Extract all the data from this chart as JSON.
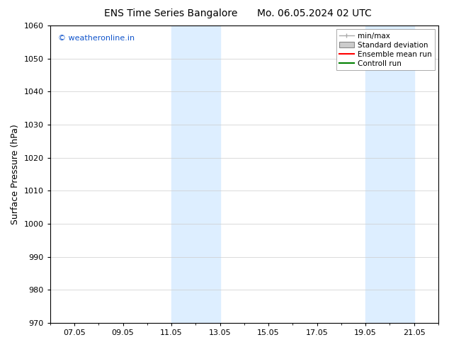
{
  "title_left": "ENS Time Series Bangalore",
  "title_right": "Mo. 06.05.2024 02 UTC",
  "ylabel": "Surface Pressure (hPa)",
  "ylim": [
    970,
    1060
  ],
  "yticks": [
    970,
    980,
    990,
    1000,
    1010,
    1020,
    1030,
    1040,
    1050,
    1060
  ],
  "xtick_labels": [
    "07.05",
    "09.05",
    "11.05",
    "13.05",
    "15.05",
    "17.05",
    "19.05",
    "21.05"
  ],
  "xtick_positions": [
    1,
    3,
    5,
    7,
    9,
    11,
    13,
    15
  ],
  "xlim": [
    0,
    16
  ],
  "shaded_regions": [
    {
      "x_start": 5.0,
      "x_end": 7.0
    },
    {
      "x_start": 13.0,
      "x_end": 15.0
    }
  ],
  "shaded_color": "#ddeeff",
  "watermark_text": "© weatheronline.in",
  "watermark_color": "#1155cc",
  "legend_items": [
    {
      "label": "min/max",
      "type": "minmax",
      "color": "#aaaaaa"
    },
    {
      "label": "Standard deviation",
      "type": "patch",
      "color": "#cccccc"
    },
    {
      "label": "Ensemble mean run",
      "type": "line",
      "color": "red"
    },
    {
      "label": "Controll run",
      "type": "line",
      "color": "green"
    }
  ],
  "background_color": "#ffffff",
  "title_fontsize": 10,
  "ylabel_fontsize": 9,
  "tick_fontsize": 8,
  "watermark_fontsize": 8,
  "legend_fontsize": 7.5
}
